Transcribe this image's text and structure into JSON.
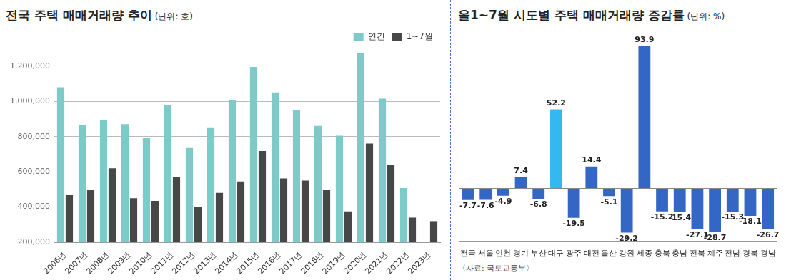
{
  "chart_data": [
    {
      "type": "bar",
      "title": "전국 주택 매매거래량 추이",
      "subtitle": "(단위: 호)",
      "categories": [
        "2006년",
        "2007년",
        "2008년",
        "2009년",
        "2010년",
        "2011년",
        "2012년",
        "2013년",
        "2014년",
        "2015년",
        "2016년",
        "2017년",
        "2018년",
        "2019년",
        "2020년",
        "2021년",
        "2022년",
        "2023년"
      ],
      "series": [
        {
          "name": "연간",
          "color": "#7ccbc9",
          "values": [
            1080000,
            865000,
            895000,
            870000,
            795000,
            980000,
            735000,
            852000,
            1005000,
            1195000,
            1050000,
            948000,
            860000,
            805000,
            1275000,
            1015000,
            508000,
            null
          ]
        },
        {
          "name": "1~7월",
          "color": "#474747",
          "values": [
            470000,
            500000,
            620000,
            450000,
            435000,
            570000,
            400000,
            480000,
            545000,
            718000,
            562000,
            550000,
            500000,
            375000,
            760000,
            640000,
            340000,
            320000
          ]
        }
      ],
      "ylim": [
        200000,
        1300000
      ],
      "yticks": [
        {
          "value": 200000,
          "label": "200,000"
        },
        {
          "value": 400000,
          "label": "400,000"
        },
        {
          "value": 600000,
          "label": "600,000"
        },
        {
          "value": 800000,
          "label": "800,000"
        },
        {
          "value": 1000000,
          "label": "1,000,000"
        },
        {
          "value": 1200000,
          "label": "1,200,000"
        }
      ],
      "grid": true,
      "legend": "top-right"
    },
    {
      "type": "bar",
      "title": "올1~7월 시도별 주택 매매거래량 증감률",
      "subtitle": "(단위: %)",
      "categories": [
        "전국",
        "서울",
        "인천",
        "경기",
        "부산",
        "대구",
        "광주",
        "대전",
        "울산",
        "강원",
        "세종",
        "충북",
        "충남",
        "전북",
        "제주",
        "전남",
        "경북",
        "경남"
      ],
      "values": [
        -7.7,
        -7.6,
        -4.9,
        7.4,
        -6.8,
        52.2,
        -19.5,
        14.4,
        -5.1,
        -29.2,
        93.9,
        -15.2,
        -15.4,
        -27.1,
        -28.7,
        -15.3,
        -18.1,
        -26.7
      ],
      "colors": [
        "#3466c6",
        "#3466c6",
        "#3466c6",
        "#3466c6",
        "#3466c6",
        "#33b8ef",
        "#3466c6",
        "#3466c6",
        "#3466c6",
        "#3466c6",
        "#3466c6",
        "#3466c6",
        "#3466c6",
        "#3466c6",
        "#3466c6",
        "#3466c6",
        "#3466c6",
        "#3466c6"
      ],
      "ylim": [
        -35,
        100
      ],
      "data_labels": true,
      "tick_labels": "x",
      "grid": false,
      "annotations": [
        "〈자료: 국토교통부〉"
      ]
    }
  ]
}
